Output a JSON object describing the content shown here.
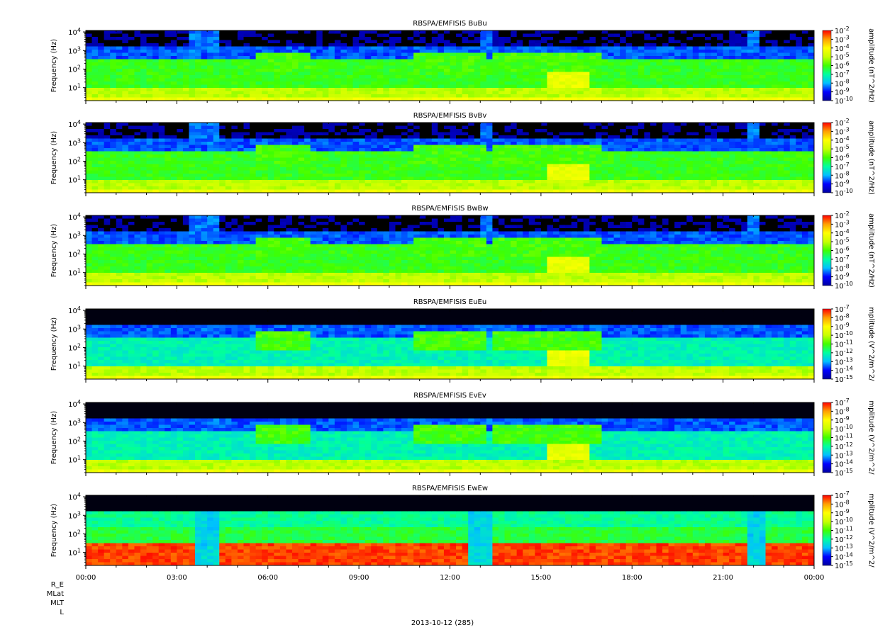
{
  "figure": {
    "date_label": "2013-10-12 (285)",
    "ephemeris_rows": [
      "R_E",
      "MLat",
      "MLT",
      "L"
    ]
  },
  "chart_data": [
    {
      "type": "heatmap",
      "title": "RBSPA/EMFISIS  BuBu",
      "ylabel": "Frequency (Hz)",
      "y_ticks": [
        "10^1",
        "10^2",
        "10^3",
        "10^4"
      ],
      "y_scale": "log",
      "ylim": [
        2,
        12000
      ],
      "x_ticks": [
        "00:00",
        "03:00",
        "06:00",
        "09:00",
        "12:00",
        "15:00",
        "18:00",
        "21:00",
        "00:00"
      ],
      "x_range_hours": [
        0,
        24
      ],
      "colorbar_label": "amplitude (nT^2/Hz)",
      "colorbar_ticks": [
        "10^-2",
        "10^-3",
        "10^-4",
        "10^-5",
        "10^-6",
        "10^-7",
        "10^-8",
        "10^-9",
        "10^-10"
      ],
      "z_scale": "log",
      "zlim": [
        1e-10,
        0.01
      ],
      "colormap": [
        "#0000a0",
        "#0000ff",
        "#00c0ff",
        "#00ffa0",
        "#40ff00",
        "#c8ff00",
        "#ffff00",
        "#ffa000",
        "#ff0000"
      ]
    },
    {
      "type": "heatmap",
      "title": "RBSPA/EMFISIS  BvBv",
      "ylabel": "Frequency (Hz)",
      "y_ticks": [
        "10^1",
        "10^2",
        "10^3",
        "10^4"
      ],
      "y_scale": "log",
      "ylim": [
        2,
        12000
      ],
      "x_ticks": [
        "00:00",
        "03:00",
        "06:00",
        "09:00",
        "12:00",
        "15:00",
        "18:00",
        "21:00",
        "00:00"
      ],
      "x_range_hours": [
        0,
        24
      ],
      "colorbar_label": "amplitude (nT^2/Hz)",
      "colorbar_ticks": [
        "10^-2",
        "10^-3",
        "10^-4",
        "10^-5",
        "10^-6",
        "10^-7",
        "10^-8",
        "10^-9",
        "10^-10"
      ],
      "z_scale": "log",
      "zlim": [
        1e-10,
        0.01
      ],
      "colormap": [
        "#0000a0",
        "#0000ff",
        "#00c0ff",
        "#00ffa0",
        "#40ff00",
        "#c8ff00",
        "#ffff00",
        "#ffa000",
        "#ff0000"
      ]
    },
    {
      "type": "heatmap",
      "title": "RBSPA/EMFISIS  BwBw",
      "ylabel": "Frequency (Hz)",
      "y_ticks": [
        "10^1",
        "10^2",
        "10^3",
        "10^4"
      ],
      "y_scale": "log",
      "ylim": [
        2,
        12000
      ],
      "x_ticks": [
        "00:00",
        "03:00",
        "06:00",
        "09:00",
        "12:00",
        "15:00",
        "18:00",
        "21:00",
        "00:00"
      ],
      "x_range_hours": [
        0,
        24
      ],
      "colorbar_label": "amplitude (nT^2/Hz)",
      "colorbar_ticks": [
        "10^-2",
        "10^-3",
        "10^-4",
        "10^-5",
        "10^-6",
        "10^-7",
        "10^-8",
        "10^-9",
        "10^-10"
      ],
      "z_scale": "log",
      "zlim": [
        1e-10,
        0.01
      ],
      "colormap": [
        "#0000a0",
        "#0000ff",
        "#00c0ff",
        "#00ffa0",
        "#40ff00",
        "#c8ff00",
        "#ffff00",
        "#ffa000",
        "#ff0000"
      ]
    },
    {
      "type": "heatmap",
      "title": "RBSPA/EMFISIS  EuEu",
      "ylabel": "Frequency (Hz)",
      "y_ticks": [
        "10^1",
        "10^2",
        "10^3",
        "10^4"
      ],
      "y_scale": "log",
      "ylim": [
        2,
        12000
      ],
      "x_ticks": [
        "00:00",
        "03:00",
        "06:00",
        "09:00",
        "12:00",
        "15:00",
        "18:00",
        "21:00",
        "00:00"
      ],
      "x_range_hours": [
        0,
        24
      ],
      "colorbar_label": "mplitude (V^2/m^2/",
      "colorbar_ticks": [
        "10^-7",
        "10^-8",
        "10^-9",
        "10^-10",
        "10^-11",
        "10^-12",
        "10^-13",
        "10^-14",
        "10^-15"
      ],
      "z_scale": "log",
      "zlim": [
        1e-15,
        1e-07
      ],
      "colormap": [
        "#0000a0",
        "#0000ff",
        "#00c0ff",
        "#00ffa0",
        "#40ff00",
        "#c8ff00",
        "#ffff00",
        "#ffa000",
        "#ff0000"
      ]
    },
    {
      "type": "heatmap",
      "title": "RBSPA/EMFISIS  EvEv",
      "ylabel": "Frequency (Hz)",
      "y_ticks": [
        "10^1",
        "10^2",
        "10^3",
        "10^4"
      ],
      "y_scale": "log",
      "ylim": [
        2,
        12000
      ],
      "x_ticks": [
        "00:00",
        "03:00",
        "06:00",
        "09:00",
        "12:00",
        "15:00",
        "18:00",
        "21:00",
        "00:00"
      ],
      "x_range_hours": [
        0,
        24
      ],
      "colorbar_label": "mplitude (V^2/m^2/",
      "colorbar_ticks": [
        "10^-7",
        "10^-8",
        "10^-9",
        "10^-10",
        "10^-11",
        "10^-12",
        "10^-13",
        "10^-14",
        "10^-15"
      ],
      "z_scale": "log",
      "zlim": [
        1e-15,
        1e-07
      ],
      "colormap": [
        "#0000a0",
        "#0000ff",
        "#00c0ff",
        "#00ffa0",
        "#40ff00",
        "#c8ff00",
        "#ffff00",
        "#ffa000",
        "#ff0000"
      ]
    },
    {
      "type": "heatmap",
      "title": "RBSPA/EMFISIS  EwEw",
      "ylabel": "Frequency (Hz)",
      "y_ticks": [
        "10^1",
        "10^2",
        "10^3",
        "10^4"
      ],
      "y_scale": "log",
      "ylim": [
        2,
        12000
      ],
      "x_ticks": [
        "00:00",
        "03:00",
        "06:00",
        "09:00",
        "12:00",
        "15:00",
        "18:00",
        "21:00",
        "00:00"
      ],
      "x_range_hours": [
        0,
        24
      ],
      "colorbar_label": "mplitude (V^2/m^2/",
      "colorbar_ticks": [
        "10^-7",
        "10^-8",
        "10^-9",
        "10^-10",
        "10^-11",
        "10^-12",
        "10^-13",
        "10^-14",
        "10^-15"
      ],
      "z_scale": "log",
      "zlim": [
        1e-15,
        1e-07
      ],
      "colormap": [
        "#0000a0",
        "#0000ff",
        "#00c0ff",
        "#00ffa0",
        "#40ff00",
        "#c8ff00",
        "#ffff00",
        "#ffa000",
        "#ff0000"
      ]
    }
  ]
}
